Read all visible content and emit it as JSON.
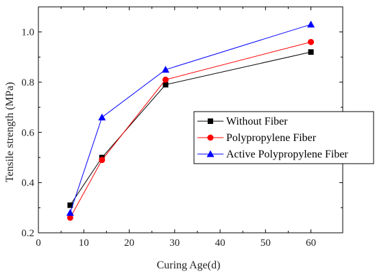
{
  "chart_data": {
    "type": "line",
    "xlabel": "Curing Age(d)",
    "ylabel": "Tensile strength (MPa)",
    "xlim": [
      0,
      67
    ],
    "ylim": [
      0.2,
      1.1
    ],
    "x_ticks": [
      "0",
      "10",
      "20",
      "30",
      "40",
      "50",
      "60"
    ],
    "y_ticks": [
      "0.2",
      "0.4",
      "0.6",
      "0.8",
      "1.0"
    ],
    "x": [
      7,
      14,
      28,
      60
    ],
    "legend_position": "center-right",
    "grid": false,
    "series": [
      {
        "name": "Without Fiber",
        "values": [
          0.31,
          0.5,
          0.79,
          0.92
        ],
        "color": "#000000",
        "marker": "square"
      },
      {
        "name": "Polypropylene Fiber",
        "values": [
          0.26,
          0.49,
          0.81,
          0.96
        ],
        "color": "#ff0000",
        "marker": "circle"
      },
      {
        "name": "Active Polypropylene Fiber",
        "values": [
          0.28,
          0.66,
          0.85,
          1.03
        ],
        "color": "#0000ff",
        "marker": "triangle"
      }
    ]
  }
}
